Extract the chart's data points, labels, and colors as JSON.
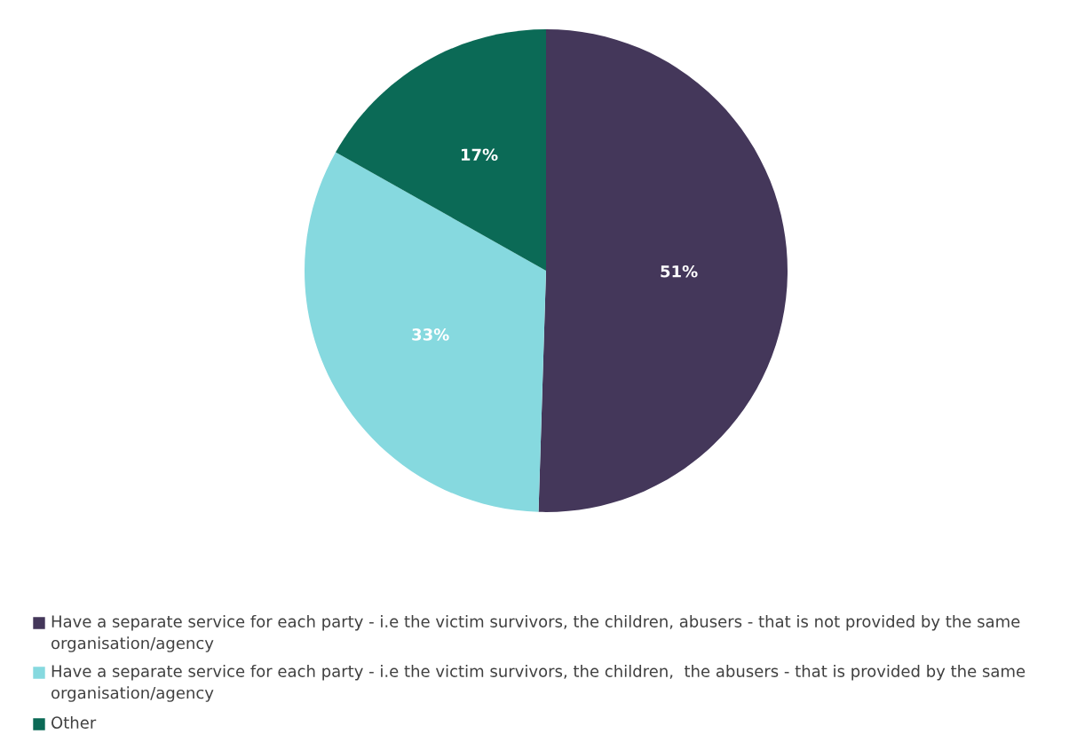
{
  "chart_data": {
    "type": "pie",
    "categories": [
      "Have a separate service for each party - i.e the victim survivors, the children, abusers - that is not provided by the same organisation/agency",
      "Have a separate service for each party - i.e the victim survivors, the children,  the abusers - that is provided by the same organisation/agency",
      "Other"
    ],
    "values": [
      51,
      33,
      17
    ],
    "colors": [
      "#44375a",
      "#86d9df",
      "#0b6a56"
    ],
    "value_labels": [
      "51%",
      "33%",
      "17%"
    ],
    "legend": "bottom"
  }
}
